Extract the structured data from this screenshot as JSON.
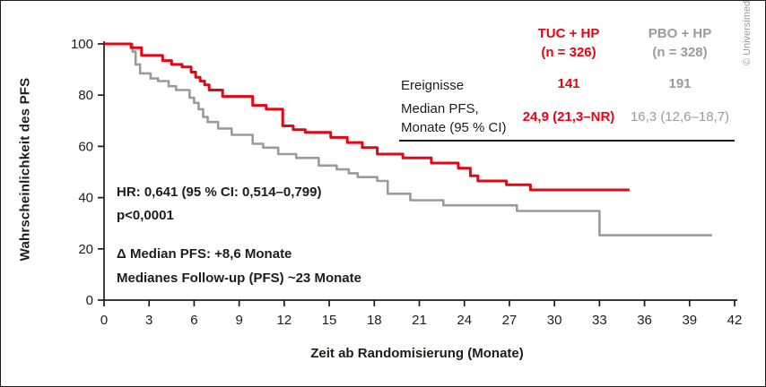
{
  "copyright": "© Universimed",
  "colors": {
    "tuc_red": "#e30613",
    "pbo_gray": "#9b9b9a",
    "text": "#1d1d1b"
  },
  "stats_table": {
    "columns": [
      {
        "name": "TUC + HP",
        "n": "(n = 326)"
      },
      {
        "name": "PBO + HP",
        "n": "(n = 328)"
      }
    ],
    "rows": {
      "events": {
        "label": "Ereignisse",
        "tuc": "141",
        "pbo": "191"
      },
      "median": {
        "label_line1": "Median PFS,",
        "label_line2": "Monate (95 % CI)",
        "tuc": "24,9 (21,3–NR)",
        "pbo": "16,3 (12,6–18,7)"
      }
    }
  },
  "annotations": {
    "hr": "HR: 0,641 (95 % CI: 0,514–0,799)",
    "p_value": "p<0,0001",
    "delta_median": "Δ Median PFS: +8,6 Monate",
    "median_followup": "Medianes Follow-up (PFS) ~23 Monate"
  },
  "chart_data": {
    "type": "line",
    "subtype": "kaplan_meier_step",
    "title": "",
    "xlabel": "Zeit ab Randomisierung (Monate)",
    "ylabel": "Wahrscheinlichkeit des PFS",
    "xlim": [
      0,
      42
    ],
    "ylim": [
      0,
      100
    ],
    "x_ticks": [
      0,
      3,
      6,
      9,
      12,
      15,
      18,
      21,
      24,
      27,
      30,
      33,
      36,
      39,
      42
    ],
    "y_ticks": [
      0,
      20,
      40,
      60,
      80,
      100
    ],
    "grid": false,
    "legend_position": "table-top-right",
    "hazard_ratio": "0,641",
    "hr_ci_95": "0,514–0,799",
    "p_value": "<0,0001",
    "series": [
      {
        "name": "TUC + HP (n = 326)",
        "color": "#e30613",
        "events": 141,
        "median_pfs_months": "24,9 (21,3–NR)",
        "points": [
          [
            0,
            100
          ],
          [
            1.8,
            98.5
          ],
          [
            2.5,
            95.5
          ],
          [
            3.9,
            93.5
          ],
          [
            4.5,
            92
          ],
          [
            5.2,
            91
          ],
          [
            5.8,
            89
          ],
          [
            6.1,
            87
          ],
          [
            6.4,
            85.5
          ],
          [
            6.7,
            84
          ],
          [
            7,
            82
          ],
          [
            7.9,
            79.5
          ],
          [
            9.9,
            76
          ],
          [
            10.8,
            74.5
          ],
          [
            11.9,
            68
          ],
          [
            12.6,
            66.5
          ],
          [
            13.4,
            65.5
          ],
          [
            15.1,
            63.5
          ],
          [
            16.2,
            61.5
          ],
          [
            17.2,
            59.5
          ],
          [
            18.2,
            57
          ],
          [
            19.9,
            55.5
          ],
          [
            21.8,
            53.5
          ],
          [
            23.6,
            51.5
          ],
          [
            24.4,
            48.5
          ],
          [
            24.9,
            46.5
          ],
          [
            26.8,
            45
          ],
          [
            28.4,
            43
          ],
          [
            35,
            43
          ]
        ]
      },
      {
        "name": "PBO + HP (n = 328)",
        "color": "#9b9b9a",
        "events": 191,
        "median_pfs_months": "16,3 (12,6–18,7)",
        "points": [
          [
            0,
            100
          ],
          [
            1.9,
            97
          ],
          [
            2.1,
            92
          ],
          [
            2.4,
            88.5
          ],
          [
            3.1,
            86.5
          ],
          [
            3.6,
            85.5
          ],
          [
            4.3,
            83.5
          ],
          [
            4.8,
            82
          ],
          [
            5.7,
            79
          ],
          [
            6,
            77
          ],
          [
            6.3,
            74.5
          ],
          [
            6.6,
            71.5
          ],
          [
            6.9,
            69.5
          ],
          [
            7.6,
            67
          ],
          [
            8.5,
            64.5
          ],
          [
            9.9,
            61
          ],
          [
            10.6,
            59.5
          ],
          [
            11.6,
            57
          ],
          [
            12.8,
            55.5
          ],
          [
            14.3,
            52.5
          ],
          [
            15.5,
            51
          ],
          [
            16.3,
            49.5
          ],
          [
            16.9,
            48
          ],
          [
            18.2,
            46.5
          ],
          [
            18.9,
            41.5
          ],
          [
            20.4,
            39
          ],
          [
            22.6,
            37
          ],
          [
            27.5,
            34.8
          ],
          [
            33,
            25.3
          ],
          [
            40.5,
            25.3
          ]
        ]
      }
    ]
  }
}
